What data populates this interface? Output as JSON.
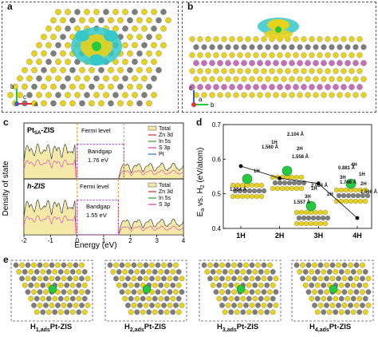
{
  "panels": {
    "a": {
      "label": "a",
      "axes": {
        "b": "b",
        "c": "c",
        "a": "a"
      }
    },
    "b": {
      "label": "b",
      "axes": {
        "c": "c",
        "a": "a",
        "b": "b"
      }
    },
    "c": {
      "label": "c",
      "ylabel": "Density of state",
      "xlabel": "Energy (eV)",
      "top": {
        "title": "Pt",
        "title_sub": "SA",
        "title_suffix": "-ZIS",
        "fermi": "Fermi level",
        "bandgap": "Bandgap",
        "bandgap_value": "1.76 eV"
      },
      "bottom": {
        "title": "h-ZIS",
        "fermi": "Fermi level",
        "bandgap": "Bandgap",
        "bandgap_value": "1.55 eV"
      },
      "legend": [
        "Total",
        "Zn 3d",
        "In 5s",
        "S 3p",
        "Pt"
      ]
    },
    "d": {
      "label": "d"
    },
    "e": {
      "label": "e",
      "captions": [
        {
          "main": "H",
          "sub": "1,ads",
          "suffix": "Pt-ZIS"
        },
        {
          "main": "H",
          "sub": "2,ads",
          "suffix": "Pt-ZIS"
        },
        {
          "main": "H",
          "sub": "3,ads",
          "suffix": "Pt-ZIS"
        },
        {
          "main": "H",
          "sub": "4,ads",
          "suffix": "Pt-ZIS"
        }
      ]
    }
  },
  "chart_data": [
    {
      "type": "line",
      "panel": "c",
      "xlabel": "Energy (eV)",
      "ylabel": "Density of state",
      "xlim": [
        -2,
        4
      ],
      "x_ticks": [
        "-2",
        "-1",
        "0",
        "1",
        "2",
        "3",
        "4"
      ],
      "series": [
        {
          "name": "Total"
        },
        {
          "name": "Zn 3d"
        },
        {
          "name": "In 5s"
        },
        {
          "name": "S 3p"
        },
        {
          "name": "Pt"
        }
      ],
      "annotations": [
        "Fermi level",
        "Bandgap 1.76 eV",
        "Bandgap 1.55 eV"
      ],
      "bandgaps_eV": {
        "Pt_SA-ZIS": 1.76,
        "h-ZIS": 1.55
      }
    },
    {
      "type": "line",
      "panel": "d",
      "ylabel": "E",
      "ylabel_sub": "a",
      "ylabel_suffix": " vs. H",
      "ylabel_sub2": "2",
      "ylabel_end": " (eV/atom)",
      "categories": [
        "1H",
        "2H",
        "3H",
        "4H"
      ],
      "values": [
        0.58,
        0.545,
        0.53,
        0.43
      ],
      "ylim": [
        0.4,
        0.7
      ],
      "y_ticks": [
        "0.4",
        "0.5",
        "0.6",
        "0.7"
      ],
      "annotations": [
        "1H",
        "1.554 Å",
        "1H",
        "2H",
        "2.104 Å",
        "1.560 Å",
        "1.558 Å",
        "3H",
        "1H",
        "2H",
        "2.084 Å",
        "1.557 Å",
        "4H",
        "0.881 Å",
        "3H",
        "1H",
        "1.746 Å",
        "2H",
        "1.566 Å"
      ]
    }
  ],
  "colors": {
    "yellow": "#e8d21c",
    "gray": "#7d7d7d",
    "pink": "#c86fb7",
    "cyan": "#35c8c8",
    "green": "#27c93f",
    "fill": "#f5e9a7",
    "orange": "#f0932b",
    "purple": "#a020f0"
  }
}
